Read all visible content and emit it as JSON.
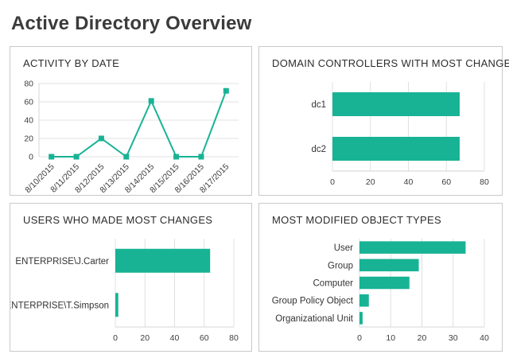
{
  "page": {
    "title": "Active Directory Overview"
  },
  "theme": {
    "accent": "#17b394",
    "grid": "#e0e0e0",
    "axis_line": "#d6d6d6",
    "panel_border": "#c9c9c9",
    "tick_text": "#3d3d3d"
  },
  "chart_data": [
    {
      "type": "line",
      "title": "ACTIVITY BY DATE",
      "categories": [
        "8/10/2015",
        "8/11/2015",
        "8/12/2015",
        "8/13/2015",
        "8/14/2015",
        "8/15/2015",
        "8/16/2015",
        "8/17/2015"
      ],
      "values": [
        0,
        0,
        20,
        0,
        61,
        0,
        0,
        72
      ],
      "xlabel": "",
      "ylabel": "",
      "ylim": [
        0,
        80
      ],
      "yticks": [
        0,
        20,
        40,
        60,
        80
      ],
      "grid": true,
      "marker": "square",
      "legend": "none"
    },
    {
      "type": "bar",
      "orientation": "horizontal",
      "title": "DOMAIN CONTROLLERS WITH MOST CHANGES",
      "categories": [
        "dc1",
        "dc2"
      ],
      "values": [
        67,
        67
      ],
      "xlabel": "",
      "ylabel": "",
      "xlim": [
        0,
        80
      ],
      "xticks": [
        0,
        20,
        40,
        60,
        80
      ],
      "grid": true,
      "legend": "none"
    },
    {
      "type": "bar",
      "orientation": "horizontal",
      "title": "USERS WHO MADE MOST CHANGES",
      "categories": [
        "ENTERPRISE\\J.Carter",
        "ENTERPRISE\\T.Simpson"
      ],
      "values": [
        64,
        2
      ],
      "xlabel": "",
      "ylabel": "",
      "xlim": [
        0,
        80
      ],
      "xticks": [
        0,
        20,
        40,
        60,
        80
      ],
      "grid": true,
      "legend": "none"
    },
    {
      "type": "bar",
      "orientation": "horizontal",
      "title": "MOST MODIFIED OBJECT TYPES",
      "categories": [
        "User",
        "Group",
        "Computer",
        "Group Policy Object",
        "Organizational Unit"
      ],
      "values": [
        34,
        19,
        16,
        3,
        1
      ],
      "xlabel": "",
      "ylabel": "",
      "xlim": [
        0,
        40
      ],
      "xticks": [
        0,
        10,
        20,
        30,
        40
      ],
      "grid": true,
      "legend": "none"
    }
  ]
}
